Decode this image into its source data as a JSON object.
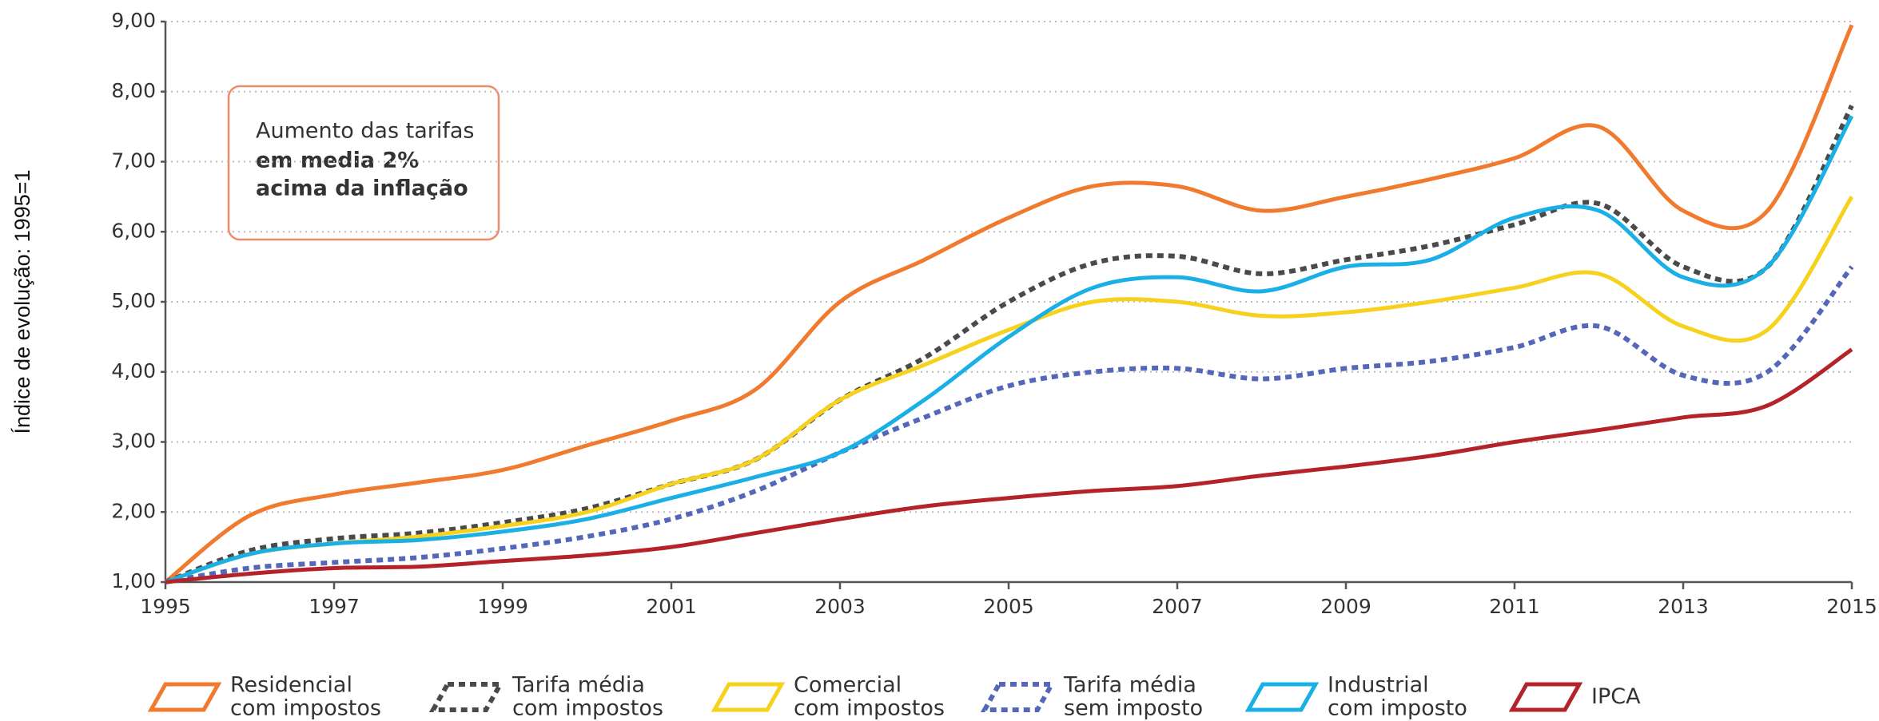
{
  "chart_data": {
    "type": "line",
    "y_label": "Índice de evolução: 1995=1",
    "annotation": [
      "Aumento das tarifas",
      "em media 2%",
      "acima da inflação"
    ],
    "x": [
      1995,
      1996,
      1997,
      1998,
      1999,
      2000,
      2001,
      2002,
      2003,
      2004,
      2005,
      2006,
      2007,
      2008,
      2009,
      2010,
      2011,
      2012,
      2013,
      2014,
      2015
    ],
    "xlim": [
      1995,
      2015
    ],
    "xticks": [
      1995,
      1997,
      1999,
      2001,
      2003,
      2005,
      2007,
      2009,
      2011,
      2013,
      2015
    ],
    "ylim": [
      1,
      9
    ],
    "yticks": [
      {
        "value": 1,
        "label": "1,00"
      },
      {
        "value": 2,
        "label": "2,00"
      },
      {
        "value": 3,
        "label": "3,00"
      },
      {
        "value": 4,
        "label": "4,00"
      },
      {
        "value": 5,
        "label": "5,00"
      },
      {
        "value": 6,
        "label": "6,00"
      },
      {
        "value": 7,
        "label": "7,00"
      },
      {
        "value": 8,
        "label": "8,00"
      },
      {
        "value": 9,
        "label": "9,00"
      }
    ],
    "grid": true,
    "series": [
      {
        "name": "Residencial\ncom impostos",
        "color": "#f07a2e",
        "dash": false,
        "values": [
          1.0,
          1.95,
          2.25,
          2.42,
          2.6,
          2.95,
          3.3,
          3.75,
          5.0,
          5.6,
          6.2,
          6.65,
          6.65,
          6.3,
          6.5,
          6.75,
          7.05,
          7.5,
          6.3,
          6.3,
          8.95
        ]
      },
      {
        "name": "Tarifa média\ncom impostos",
        "color": "#4a4a4a",
        "dash": true,
        "values": [
          1.0,
          1.45,
          1.62,
          1.7,
          1.85,
          2.05,
          2.4,
          2.75,
          3.6,
          4.2,
          5.0,
          5.55,
          5.65,
          5.4,
          5.6,
          5.8,
          6.1,
          6.4,
          5.5,
          5.5,
          7.8
        ]
      },
      {
        "name": "Comercial\ncom impostos",
        "color": "#f6d21e",
        "dash": false,
        "values": [
          1.0,
          1.4,
          1.55,
          1.65,
          1.8,
          2.0,
          2.4,
          2.75,
          3.6,
          4.1,
          4.6,
          5.0,
          5.0,
          4.8,
          4.85,
          5.0,
          5.2,
          5.4,
          4.65,
          4.6,
          6.5
        ]
      },
      {
        "name": "Tarifa média\nsem imposto",
        "color": "#5567b8",
        "dash": true,
        "values": [
          1.0,
          1.2,
          1.28,
          1.35,
          1.48,
          1.65,
          1.9,
          2.3,
          2.85,
          3.35,
          3.8,
          4.0,
          4.05,
          3.9,
          4.05,
          4.15,
          4.35,
          4.65,
          3.95,
          4.0,
          5.5
        ]
      },
      {
        "name": "Industrial\ncom imposto",
        "color": "#1ab0e6",
        "dash": false,
        "values": [
          1.0,
          1.4,
          1.55,
          1.6,
          1.72,
          1.9,
          2.2,
          2.5,
          2.85,
          3.6,
          4.5,
          5.2,
          5.35,
          5.15,
          5.5,
          5.6,
          6.2,
          6.3,
          5.35,
          5.5,
          7.65
        ]
      },
      {
        "name": "IPCA",
        "color": "#b5232a",
        "dash": false,
        "values": [
          1.0,
          1.12,
          1.2,
          1.22,
          1.3,
          1.38,
          1.5,
          1.7,
          1.9,
          2.08,
          2.2,
          2.3,
          2.37,
          2.52,
          2.65,
          2.8,
          3.0,
          3.17,
          3.35,
          3.52,
          4.32
        ]
      }
    ]
  }
}
